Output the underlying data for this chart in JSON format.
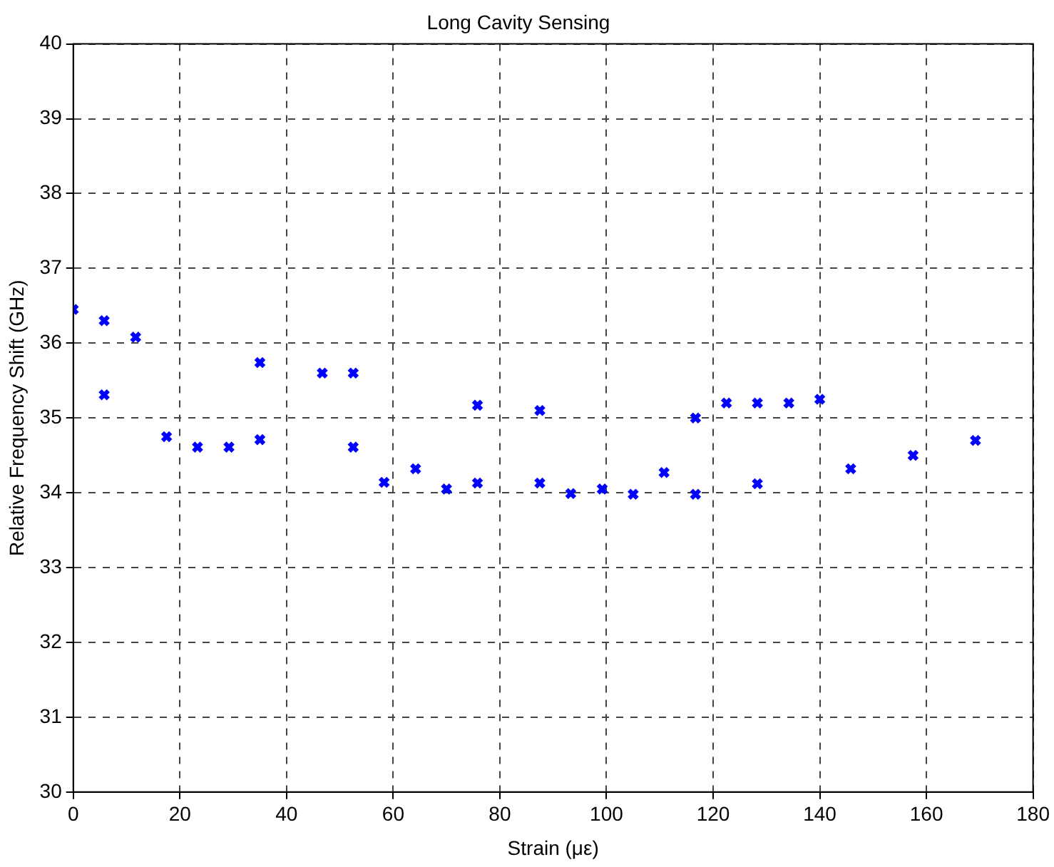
{
  "chart_data": {
    "type": "scatter",
    "title": "Long Cavity Sensing",
    "xlabel": "Strain (με)",
    "ylabel": "Relative Frequency Shift (GHz)",
    "xlim": [
      0,
      180
    ],
    "xticks": [
      0,
      20,
      40,
      60,
      80,
      100,
      120,
      140,
      160,
      180
    ],
    "ylim": [
      30,
      40
    ],
    "yticks": [
      30,
      31,
      32,
      33,
      34,
      35,
      36,
      37,
      38,
      39,
      40
    ],
    "grid": true,
    "marker": "cross",
    "legend": false,
    "series": [
      {
        "color": "#0000ff",
        "x": [
          0,
          5.8,
          5.8,
          11.7,
          17.5,
          23.3,
          29.2,
          35,
          35,
          46.7,
          52.5,
          52.5,
          58.3,
          64.2,
          70,
          75.8,
          75.8,
          87.5,
          87.5,
          93.3,
          99.2,
          105,
          110.8,
          116.7,
          116.7,
          122.5,
          128.3,
          128.3,
          134.2,
          140,
          145.8,
          157.5,
          169.2
        ],
        "values": [
          36.45,
          36.3,
          35.31,
          36.08,
          34.75,
          34.61,
          34.61,
          34.71,
          35.74,
          35.6,
          35.6,
          34.61,
          34.14,
          34.32,
          34.05,
          34.13,
          35.17,
          34.13,
          35.1,
          33.99,
          34.05,
          33.98,
          34.27,
          33.98,
          35.0,
          35.2,
          35.2,
          34.12,
          35.2,
          35.25,
          34.32,
          34.5,
          34.7
        ]
      }
    ]
  }
}
